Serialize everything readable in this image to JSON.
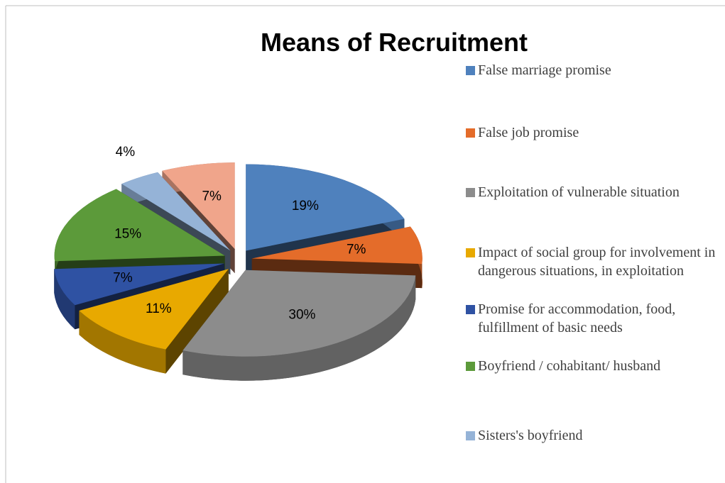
{
  "chart_data": {
    "type": "pie",
    "title": "Means of Recruitment",
    "categories": [
      "False marriage promise",
      "False job promise",
      "Exploitation of vulnerable situation",
      "Impact of social group for involvement in dangerous situations, in exploitation",
      "Promise for accommodation, food, fulfillment of basic needs",
      "Boyfriend / cohabitant/ husband",
      "Sisters's boyfriend",
      null
    ],
    "values": [
      19,
      7,
      30,
      11,
      7,
      15,
      4,
      7
    ],
    "value_labels": [
      "19%",
      "7%",
      "30%",
      "11%",
      "7%",
      "15%",
      "4%",
      "7%"
    ],
    "colors": [
      "#4f81bd",
      "#e46c2a",
      "#8c8c8c",
      "#e8a900",
      "#2f52a3",
      "#5c9a3a",
      "#95b3d7",
      "#f0a58b"
    ],
    "legend": "right"
  }
}
